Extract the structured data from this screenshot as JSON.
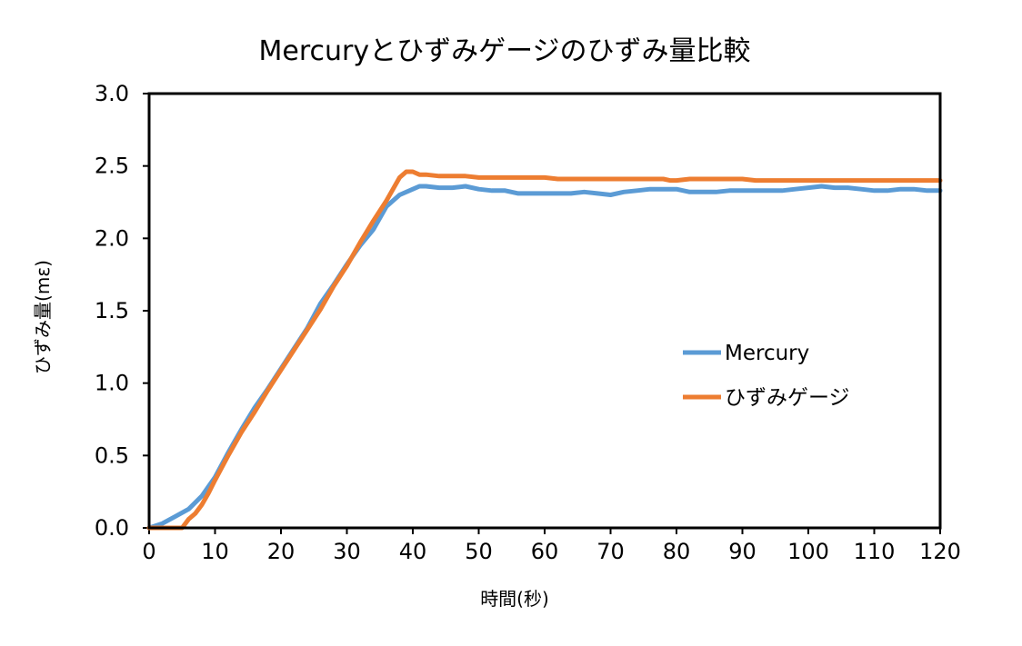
{
  "chart_data": {
    "type": "line",
    "title": "Mercuryとひずみゲージのひずみ量比較",
    "xlabel": "時間(秒)",
    "ylabel": "ひずみ量(mε)",
    "xlim": [
      0,
      120
    ],
    "ylim": [
      0,
      3.0
    ],
    "x_ticks": [
      "0",
      "10",
      "20",
      "30",
      "40",
      "50",
      "60",
      "70",
      "80",
      "90",
      "100",
      "110",
      "120"
    ],
    "y_ticks": [
      "0.0",
      "0.5",
      "1.0",
      "1.5",
      "2.0",
      "2.5",
      "3.0"
    ],
    "grid": false,
    "legend_position": "right-inside",
    "series": [
      {
        "name": "Mercury",
        "color": "#5B9BD5",
        "x": [
          0,
          2,
          4,
          6,
          8,
          10,
          12,
          14,
          16,
          18,
          20,
          22,
          24,
          26,
          28,
          30,
          32,
          34,
          36,
          38,
          40,
          41,
          42,
          44,
          46,
          48,
          50,
          52,
          54,
          56,
          58,
          60,
          62,
          64,
          66,
          68,
          70,
          72,
          74,
          76,
          78,
          80,
          82,
          84,
          86,
          88,
          90,
          92,
          94,
          96,
          98,
          100,
          102,
          104,
          106,
          108,
          110,
          112,
          114,
          116,
          118,
          120
        ],
        "values": [
          0.0,
          0.03,
          0.08,
          0.13,
          0.22,
          0.35,
          0.52,
          0.68,
          0.83,
          0.96,
          1.1,
          1.24,
          1.38,
          1.55,
          1.68,
          1.82,
          1.95,
          2.06,
          2.22,
          2.3,
          2.34,
          2.36,
          2.36,
          2.35,
          2.35,
          2.36,
          2.34,
          2.33,
          2.33,
          2.31,
          2.31,
          2.31,
          2.31,
          2.31,
          2.32,
          2.31,
          2.3,
          2.32,
          2.33,
          2.34,
          2.34,
          2.34,
          2.32,
          2.32,
          2.32,
          2.33,
          2.33,
          2.33,
          2.33,
          2.33,
          2.34,
          2.35,
          2.36,
          2.35,
          2.35,
          2.34,
          2.33,
          2.33,
          2.34,
          2.34,
          2.33,
          2.33
        ]
      },
      {
        "name": "ひずみゲージ",
        "color": "#ED7D31",
        "x": [
          0,
          5,
          6,
          7,
          8,
          9,
          10,
          12,
          14,
          16,
          18,
          20,
          22,
          24,
          26,
          28,
          30,
          32,
          34,
          36,
          38,
          39,
          40,
          41,
          42,
          44,
          46,
          48,
          50,
          55,
          60,
          62,
          64,
          66,
          70,
          75,
          78,
          79,
          80,
          82,
          85,
          90,
          92,
          95,
          100,
          105,
          110,
          115,
          120
        ],
        "values": [
          0.0,
          0.0,
          0.06,
          0.1,
          0.16,
          0.24,
          0.33,
          0.5,
          0.66,
          0.8,
          0.95,
          1.09,
          1.23,
          1.37,
          1.51,
          1.67,
          1.81,
          1.97,
          2.12,
          2.26,
          2.42,
          2.46,
          2.46,
          2.44,
          2.44,
          2.43,
          2.43,
          2.43,
          2.42,
          2.42,
          2.42,
          2.41,
          2.41,
          2.41,
          2.41,
          2.41,
          2.41,
          2.4,
          2.4,
          2.41,
          2.41,
          2.41,
          2.4,
          2.4,
          2.4,
          2.4,
          2.4,
          2.4,
          2.4
        ]
      }
    ]
  }
}
